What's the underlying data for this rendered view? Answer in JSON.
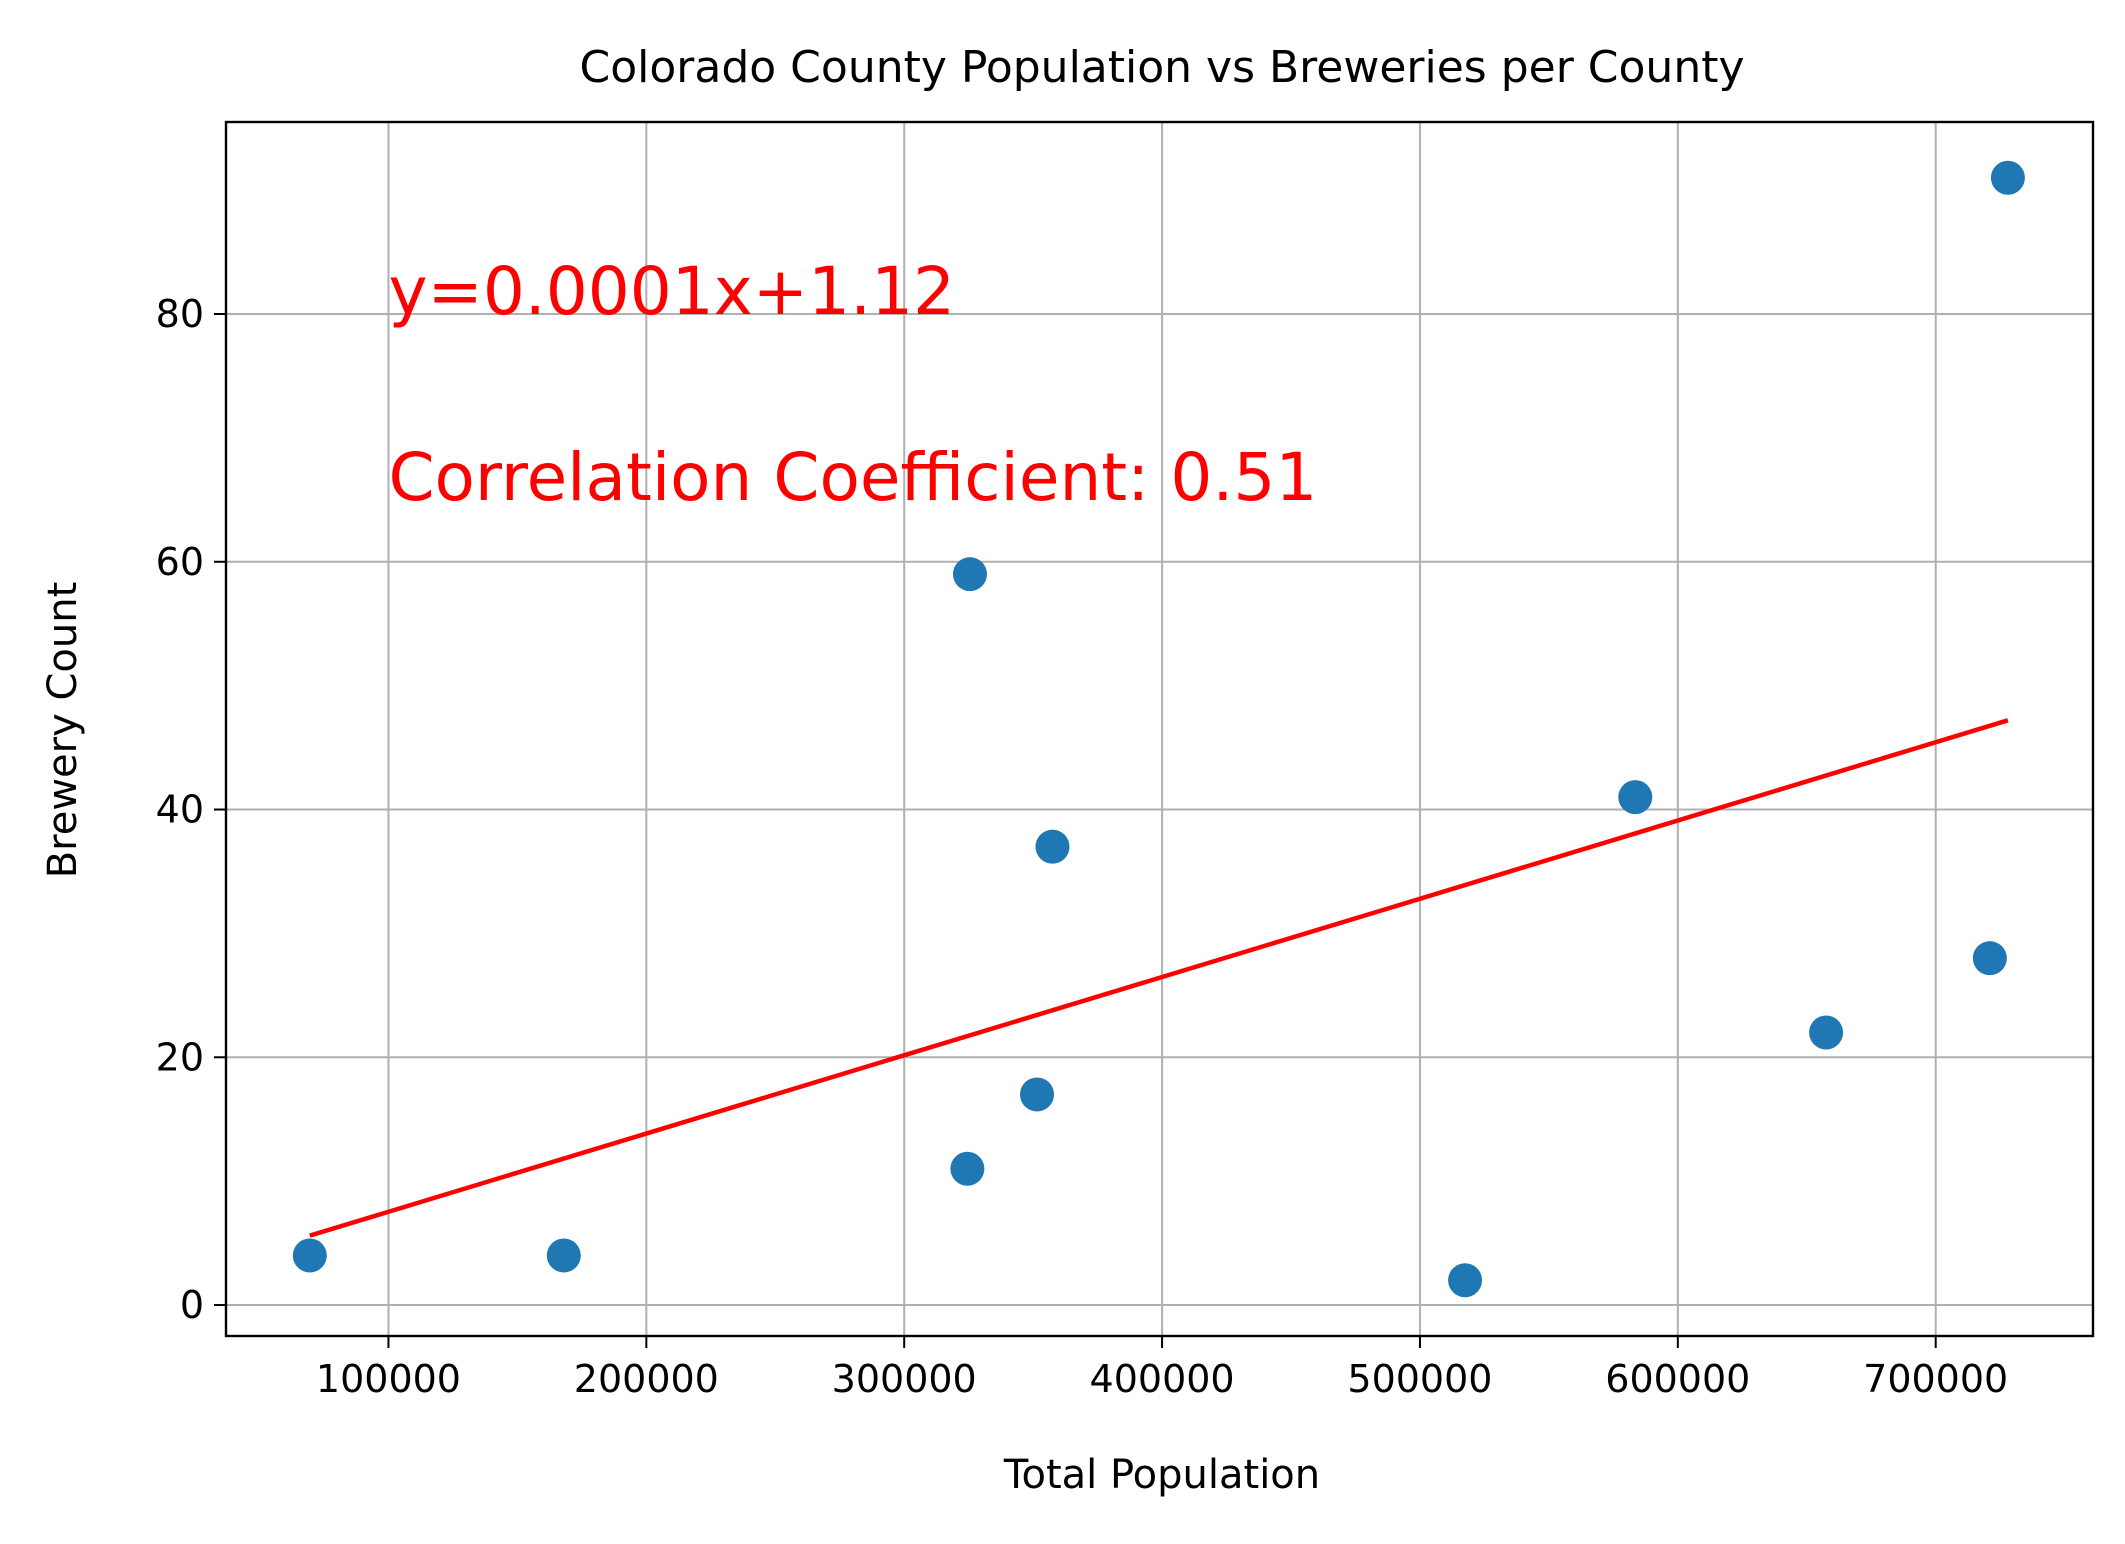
{
  "chart_data": {
    "type": "scatter",
    "title": "Colorado County Population vs Breweries per County",
    "xlabel": "Total Population",
    "ylabel": "Brewery Count",
    "xlim": [
      37000,
      761000
    ],
    "ylim": [
      -2.5,
      95.5
    ],
    "xticks": [
      100000,
      200000,
      300000,
      400000,
      500000,
      600000,
      700000
    ],
    "xtick_labels": [
      "100000",
      "200000",
      "300000",
      "400000",
      "500000",
      "600000",
      "700000"
    ],
    "yticks": [
      0,
      20,
      40,
      60,
      80
    ],
    "ytick_labels": [
      "0",
      "20",
      "40",
      "60",
      "80"
    ],
    "grid": true,
    "legend": "none",
    "series": [
      {
        "type": "scatter",
        "color": "#1f77b4",
        "x": [
          69500,
          168000,
          325500,
          324500,
          351500,
          357500,
          517500,
          583500,
          657500,
          721000,
          728000
        ],
        "y": [
          4,
          4,
          59,
          11,
          17,
          37,
          2,
          41,
          22,
          28,
          91
        ]
      }
    ],
    "regression_line": {
      "color": "#ff0000",
      "x": [
        69500,
        728000
      ],
      "y": [
        5.6,
        47.2
      ]
    },
    "annotations": [
      {
        "text": "y=0.0001x+1.12",
        "x": 100000,
        "y": 80,
        "color": "#ff0000"
      },
      {
        "text": "Correlation Coefficient: 0.51",
        "x": 100000,
        "y": 65,
        "color": "#ff0000"
      }
    ]
  }
}
